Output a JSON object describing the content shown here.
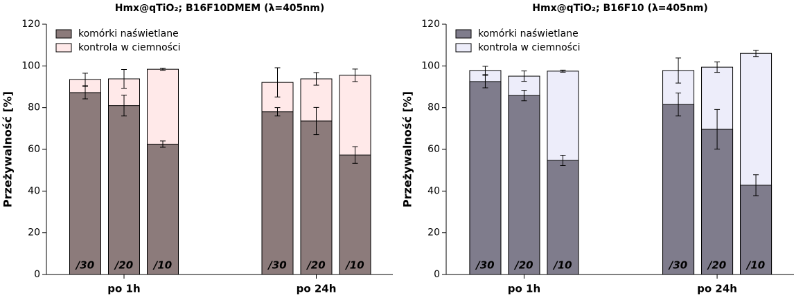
{
  "chart_data": [
    {
      "type": "bar",
      "title": "Hmx@qTiO₂; B16F10DMEM (λ=405nm)",
      "y_label": "Przeżywalność [%]",
      "groups": [
        "po 1h",
        "po 24h"
      ],
      "bar_labels": [
        "/30",
        "/20",
        "/10",
        "/30",
        "/20",
        "/10"
      ],
      "series": [
        {
          "name": "komórki naświetlane",
          "color": "#8c7b7b",
          "values": [
            87.2,
            81.0,
            62.5,
            78.0,
            73.6,
            57.3
          ],
          "errors": [
            3,
            5,
            1.5,
            2,
            6.5,
            4
          ]
        },
        {
          "name": "kontrola w ciemności",
          "color": "#ffe9e9",
          "values": [
            93.5,
            93.8,
            98.4,
            92.1,
            93.8,
            95.5
          ],
          "errors": [
            3,
            4.5,
            0.5,
            7,
            3,
            3
          ]
        }
      ],
      "ylim": [
        0,
        120
      ],
      "yticks": [
        0,
        20,
        40,
        60,
        80,
        100,
        120
      ],
      "legend": "upper left"
    },
    {
      "type": "bar",
      "title": "Hmx@qTiO₂; B16F10 (λ=405nm)",
      "y_label": "Przeżywalność [%]",
      "groups": [
        "po 1h",
        "po 24h"
      ],
      "bar_labels": [
        "/30",
        "/20",
        "/10",
        "/30",
        "/20",
        "/10"
      ],
      "series": [
        {
          "name": "komórki naświetlane",
          "color": "#7f7c8c",
          "values": [
            92.5,
            85.8,
            54.7,
            81.5,
            69.6,
            42.8
          ],
          "errors": [
            3,
            2.5,
            2.5,
            5.5,
            9.5,
            5
          ]
        },
        {
          "name": "kontrola w ciemności",
          "color": "#ededfa",
          "values": [
            97.8,
            95.1,
            97.5,
            97.8,
            99.4,
            106
          ],
          "errors": [
            2,
            2.5,
            0.5,
            6,
            2.5,
            1.5
          ]
        }
      ],
      "ylim": [
        0,
        120
      ],
      "yticks": [
        0,
        20,
        40,
        60,
        80,
        100,
        120
      ],
      "legend": "upper left"
    }
  ]
}
